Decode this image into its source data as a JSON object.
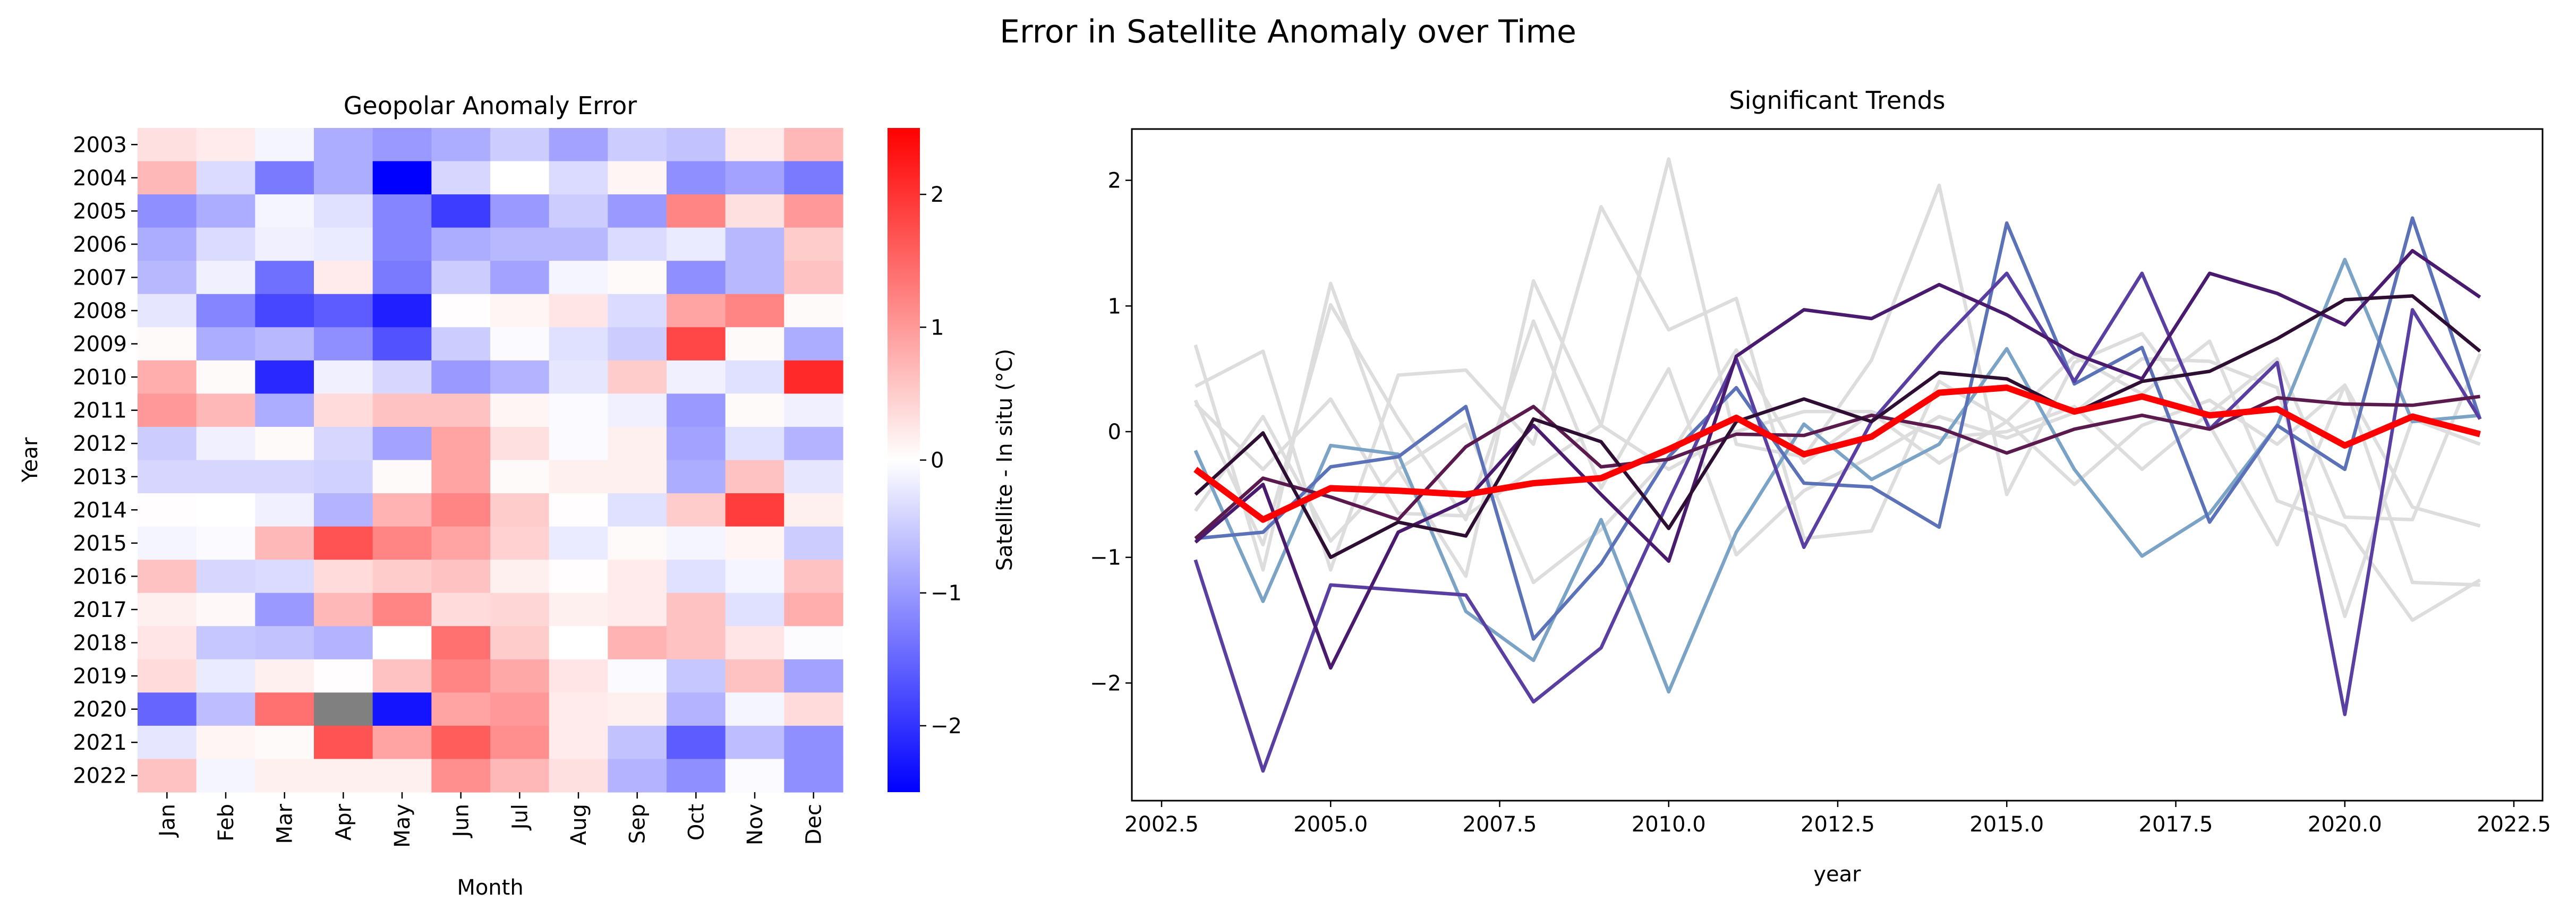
{
  "suptitle": "Error in Satellite Anomaly over Time",
  "chart_data": [
    {
      "type": "heatmap",
      "title": "Geopolar Anomaly Error",
      "xlabel": "Month",
      "ylabel": "Year",
      "x_categories": [
        "Jan",
        "Feb",
        "Mar",
        "Apr",
        "May",
        "Jun",
        "Jul",
        "Aug",
        "Sep",
        "Oct",
        "Nov",
        "Dec"
      ],
      "y_categories": [
        "2003",
        "2004",
        "2005",
        "2006",
        "2007",
        "2008",
        "2009",
        "2010",
        "2011",
        "2012",
        "2013",
        "2014",
        "2015",
        "2016",
        "2017",
        "2018",
        "2019",
        "2020",
        "2021",
        "2022"
      ],
      "colormap": "bwr",
      "missing_color": "#808080",
      "vmin": -2.5,
      "vmax": 2.5,
      "colorbar": {
        "label": "Satellite - In situ (°C)",
        "ticks": [
          "-2",
          "-1",
          "0",
          "1",
          "2"
        ]
      },
      "values": [
        [
          0.3,
          0.2,
          -0.1,
          -0.8,
          -1.0,
          -0.8,
          -0.5,
          -0.9,
          -0.5,
          -0.6,
          0.2,
          0.7
        ],
        [
          0.7,
          -0.35,
          -1.3,
          -0.8,
          -2.5,
          -0.4,
          0.0,
          -0.35,
          0.1,
          -1.1,
          -0.9,
          -1.3
        ],
        [
          -1.1,
          -0.8,
          -0.1,
          -0.3,
          -1.2,
          -1.9,
          -1.0,
          -0.5,
          -1.0,
          1.2,
          0.3,
          1.0
        ],
        [
          -0.8,
          -0.35,
          -0.15,
          -0.2,
          -1.2,
          -0.8,
          -0.7,
          -0.7,
          -0.35,
          -0.2,
          -0.7,
          0.5
        ],
        [
          -0.7,
          -0.15,
          -1.4,
          0.2,
          -1.3,
          -0.5,
          -0.9,
          -0.1,
          0.05,
          -1.1,
          -0.7,
          0.6
        ],
        [
          -0.25,
          -1.2,
          -1.8,
          -1.6,
          -2.2,
          0.02,
          0.1,
          0.25,
          -0.35,
          0.9,
          1.2,
          0.05
        ],
        [
          0.05,
          -0.8,
          -0.7,
          -1.1,
          -1.7,
          -0.5,
          -0.05,
          -0.3,
          -0.5,
          1.8,
          0.05,
          -0.8
        ],
        [
          0.8,
          0.05,
          -2.1,
          -0.15,
          -0.4,
          -1.0,
          -0.75,
          -0.25,
          0.5,
          -0.15,
          -0.3,
          2.1
        ],
        [
          1.0,
          0.7,
          -0.8,
          0.35,
          0.6,
          0.6,
          0.1,
          -0.05,
          -0.15,
          -1.0,
          0.05,
          -0.15
        ],
        [
          -0.5,
          -0.15,
          0.05,
          -0.4,
          -0.9,
          0.9,
          0.3,
          -0.05,
          0.15,
          -0.9,
          -0.3,
          -0.75
        ],
        [
          -0.4,
          -0.4,
          -0.4,
          -0.45,
          0.05,
          0.9,
          0.05,
          0.15,
          0.15,
          -0.8,
          0.6,
          -0.25
        ],
        [
          0.02,
          0.0,
          -0.15,
          -0.75,
          0.75,
          1.2,
          0.5,
          0.02,
          -0.3,
          0.5,
          1.9,
          0.15
        ],
        [
          -0.1,
          -0.05,
          0.7,
          1.7,
          1.2,
          0.9,
          0.45,
          -0.2,
          0.05,
          -0.1,
          0.1,
          -0.5
        ],
        [
          0.6,
          -0.4,
          -0.35,
          0.35,
          0.5,
          0.6,
          0.15,
          0.02,
          0.2,
          -0.3,
          -0.1,
          0.6
        ],
        [
          0.15,
          0.07,
          -1.0,
          0.7,
          1.2,
          0.35,
          0.4,
          0.15,
          0.2,
          0.6,
          -0.3,
          0.8
        ],
        [
          0.25,
          -0.55,
          -0.6,
          -0.75,
          0.0,
          1.4,
          0.5,
          0.0,
          0.75,
          0.6,
          0.25,
          -0.03
        ],
        [
          0.35,
          -0.2,
          0.15,
          0.02,
          0.6,
          1.2,
          0.85,
          0.25,
          -0.05,
          -0.55,
          0.6,
          -0.9
        ],
        [
          -1.5,
          -0.65,
          1.4,
          null,
          -2.3,
          0.9,
          1.0,
          0.2,
          0.15,
          -0.75,
          -0.1,
          0.35
        ],
        [
          -0.25,
          0.1,
          0.05,
          1.7,
          0.9,
          1.6,
          1.1,
          0.2,
          -0.6,
          -1.6,
          -0.65,
          -1.1
        ],
        [
          0.6,
          -0.1,
          0.15,
          0.15,
          0.15,
          1.1,
          0.7,
          0.3,
          -0.75,
          -1.1,
          -0.05,
          -1.1
        ]
      ]
    },
    {
      "type": "line",
      "title": "Significant Trends",
      "xlabel": "year",
      "ylabel": "",
      "xlim": [
        2002.0,
        2023.0
      ],
      "ylim": [
        -2.85,
        2.4
      ],
      "xticks": [
        "2002.5",
        "2005.0",
        "2007.5",
        "2010.0",
        "2012.5",
        "2015.0",
        "2017.5",
        "2020.0",
        "2022.5"
      ],
      "yticks": [
        "−2",
        "−1",
        "0",
        "1",
        "2"
      ],
      "grid": false,
      "x": [
        2003,
        2004,
        2005,
        2006,
        2007,
        2008,
        2009,
        2010,
        2011,
        2012,
        2013,
        2014,
        2015,
        2016,
        2017,
        2018,
        2019,
        2020,
        2021,
        2022
      ],
      "series": [
        {
          "color": "#dddddd",
          "values": [
            0.69,
            -1.1,
            1.18,
            -0.3,
            -1.15,
            1.2,
            0.05,
            2.17,
            -0.1,
            -0.2,
            0.57,
            1.96,
            -0.5,
            0.55,
            0.78,
            0.05,
            -0.9,
            0.37,
            -1.2,
            -1.22
          ]
        },
        {
          "color": "#dddddd",
          "values": [
            0.36,
            0.64,
            -1.1,
            0.45,
            0.49,
            -0.1,
            1.79,
            0.81,
            1.06,
            -0.85,
            -0.79,
            0.4,
            0.08,
            0.6,
            0.3,
            0.72,
            -0.55,
            -0.75,
            -1.5,
            -1.18
          ]
        },
        {
          "color": "#dddddd",
          "values": [
            0.25,
            -0.9,
            1.01,
            0.1,
            -0.7,
            0.88,
            -0.45,
            0.5,
            -0.98,
            -0.47,
            -0.2,
            0.12,
            -0.05,
            0.15,
            0.58,
            0.56,
            0.35,
            -1.47,
            0.1,
            -0.1
          ]
        },
        {
          "color": "#dddddd",
          "values": [
            -0.63,
            0.12,
            -0.87,
            -0.3,
            0.06,
            -1.2,
            -0.78,
            -0.2,
            0.65,
            -0.25,
            0.15,
            -0.25,
            0.08,
            -0.42,
            0.05,
            0.25,
            -0.1,
            0.37,
            -0.6,
            -0.75
          ]
        },
        {
          "color": "#dddddd",
          "values": [
            0.22,
            -0.3,
            0.26,
            -0.65,
            -0.67,
            -0.3,
            0.05,
            -0.3,
            0.0,
            0.16,
            0.16,
            -0.05,
            0.0,
            0.2,
            -0.3,
            0.15,
            0.58,
            -0.68,
            -0.7,
            0.62
          ]
        },
        {
          "color": "#7aa3c6",
          "values": [
            -0.15,
            -1.35,
            -0.11,
            -0.18,
            -1.43,
            -1.82,
            -0.7,
            -2.07,
            -0.8,
            0.06,
            -0.38,
            -0.1,
            0.66,
            -0.3,
            -0.99,
            -0.65,
            0.05,
            1.37,
            0.08,
            0.13
          ]
        },
        {
          "color": "#5b72b9",
          "values": [
            -0.85,
            -0.8,
            -0.28,
            -0.2,
            0.2,
            -1.65,
            -1.05,
            -0.2,
            0.35,
            -0.41,
            -0.44,
            -0.76,
            1.66,
            0.38,
            0.67,
            -0.72,
            0.05,
            -0.3,
            1.7,
            0.1
          ]
        },
        {
          "color": "#5a3fa3",
          "values": [
            -1.02,
            -2.7,
            -1.22,
            -1.26,
            -1.3,
            -2.15,
            -1.72,
            -0.55,
            0.58,
            -0.92,
            0.08,
            0.7,
            1.26,
            0.4,
            1.26,
            0.02,
            0.55,
            -2.25,
            0.97,
            0.1
          ]
        },
        {
          "color": "#4a1a6e",
          "values": [
            -0.88,
            -0.42,
            -1.88,
            -0.8,
            -0.55,
            0.05,
            -0.5,
            -1.03,
            0.6,
            0.97,
            0.9,
            1.17,
            0.93,
            0.62,
            0.42,
            1.26,
            1.1,
            0.85,
            1.44,
            1.07
          ]
        },
        {
          "color": "#5a1a4e",
          "values": [
            -0.85,
            -0.37,
            -0.52,
            -0.7,
            -0.12,
            0.2,
            -0.28,
            -0.22,
            -0.02,
            -0.03,
            0.13,
            0.03,
            -0.17,
            0.02,
            0.13,
            0.02,
            0.27,
            0.22,
            0.21,
            0.28
          ]
        },
        {
          "color": "#2e0f33",
          "values": [
            -0.5,
            -0.01,
            -1.0,
            -0.72,
            -0.83,
            0.1,
            -0.08,
            -0.77,
            0.08,
            0.26,
            0.08,
            0.47,
            0.42,
            0.15,
            0.4,
            0.48,
            0.74,
            1.05,
            1.08,
            0.64
          ]
        },
        {
          "color": "#ff0000",
          "width": "thick",
          "values": [
            -0.3,
            -0.7,
            -0.45,
            -0.47,
            -0.5,
            -0.41,
            -0.37,
            -0.14,
            0.11,
            -0.18,
            -0.04,
            0.31,
            0.35,
            0.16,
            0.28,
            0.13,
            0.18,
            -0.11,
            0.12,
            -0.02
          ]
        }
      ]
    }
  ]
}
